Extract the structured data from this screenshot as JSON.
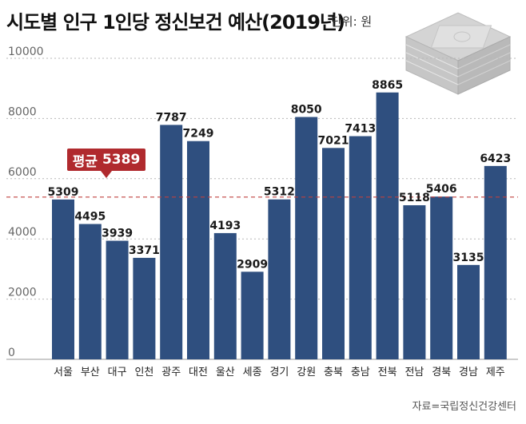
{
  "header": {
    "title": "시도별 인구 1인당 정신보건 예산(2019년)",
    "unit": "단위: 원"
  },
  "average": {
    "label": "평균",
    "value": "5389"
  },
  "footer": {
    "source": "자료=국립정신건강센터"
  },
  "colors": {
    "bar": "#2f4f7f",
    "average_line": "#c0403f",
    "badge": "#b02a2e"
  },
  "chart_data": {
    "type": "bar",
    "categories": [
      "서울",
      "부산",
      "대구",
      "인천",
      "광주",
      "대전",
      "울산",
      "세종",
      "경기",
      "강원",
      "충북",
      "충남",
      "전북",
      "전남",
      "경북",
      "경남",
      "제주"
    ],
    "values": [
      5309,
      4495,
      3939,
      3371,
      7787,
      7249,
      4193,
      2909,
      5312,
      8050,
      7021,
      7413,
      8865,
      5118,
      5406,
      3135,
      6423
    ],
    "yticks": [
      0,
      2000,
      4000,
      6000,
      8000,
      10000
    ],
    "ylim": [
      0,
      10000
    ],
    "reference_line": 5389,
    "grid": true
  }
}
